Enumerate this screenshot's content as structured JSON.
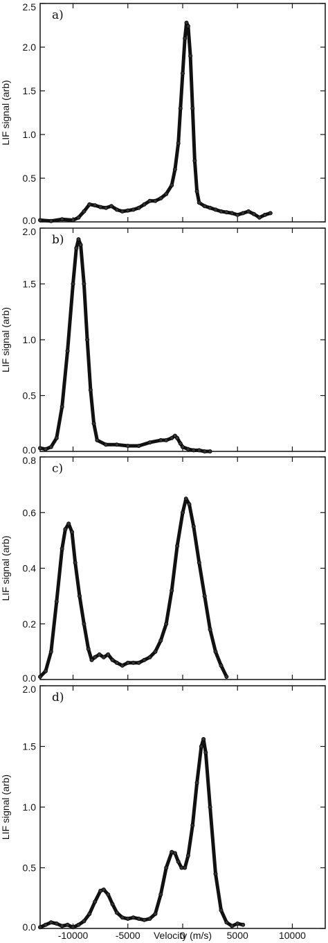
{
  "figure": {
    "x_axis_label": "Velocity (m/s)"
  },
  "chart_data": [
    {
      "type": "scatter",
      "panel_label": "a)",
      "ylabel": "LIF signal (arb)",
      "xlabel": "",
      "xlim": [
        -13000,
        13000
      ],
      "ylim": [
        0,
        2.5
      ],
      "x_ticks": [
        -10000,
        -5000,
        0,
        5000,
        10000
      ],
      "y_ticks": [
        0.0,
        0.5,
        1.0,
        1.5,
        2.0,
        2.5
      ],
      "y_tick_labels": [
        "0.0",
        "0.5",
        "1.0",
        "1.5",
        "2.0",
        "2.5"
      ],
      "points": [
        [
          -13000,
          0.02
        ],
        [
          -12000,
          0.01
        ],
        [
          -11000,
          0.03
        ],
        [
          -10000,
          0.02
        ],
        [
          -9500,
          0.05
        ],
        [
          -9000,
          0.12
        ],
        [
          -8500,
          0.2
        ],
        [
          -8000,
          0.19
        ],
        [
          -7500,
          0.17
        ],
        [
          -7000,
          0.16
        ],
        [
          -6500,
          0.18
        ],
        [
          -6000,
          0.14
        ],
        [
          -5500,
          0.12
        ],
        [
          -5000,
          0.13
        ],
        [
          -4500,
          0.14
        ],
        [
          -4000,
          0.16
        ],
        [
          -3500,
          0.2
        ],
        [
          -3000,
          0.24
        ],
        [
          -2500,
          0.24
        ],
        [
          -2000,
          0.27
        ],
        [
          -1500,
          0.32
        ],
        [
          -1000,
          0.42
        ],
        [
          -700,
          0.6
        ],
        [
          -400,
          0.9
        ],
        [
          -200,
          1.3
        ],
        [
          0,
          1.7
        ],
        [
          200,
          2.1
        ],
        [
          350,
          2.28
        ],
        [
          500,
          2.24
        ],
        [
          700,
          1.9
        ],
        [
          900,
          1.3
        ],
        [
          1100,
          0.7
        ],
        [
          1300,
          0.35
        ],
        [
          1500,
          0.22
        ],
        [
          2000,
          0.18
        ],
        [
          2500,
          0.16
        ],
        [
          3000,
          0.14
        ],
        [
          3500,
          0.12
        ],
        [
          4000,
          0.11
        ],
        [
          4500,
          0.1
        ],
        [
          5000,
          0.08
        ],
        [
          5500,
          0.1
        ],
        [
          6000,
          0.12
        ],
        [
          6500,
          0.09
        ],
        [
          7000,
          0.05
        ],
        [
          7500,
          0.08
        ],
        [
          8000,
          0.1
        ]
      ]
    },
    {
      "type": "scatter",
      "panel_label": "b)",
      "ylabel": "LIF signal (arb)",
      "xlabel": "",
      "xlim": [
        -13000,
        13000
      ],
      "ylim": [
        0,
        2.0
      ],
      "x_ticks": [
        -10000,
        -5000,
        0,
        5000,
        10000
      ],
      "y_ticks": [
        0.0,
        0.5,
        1.0,
        1.5,
        2.0
      ],
      "y_tick_labels": [
        "0.0",
        "0.5",
        "1.0",
        "1.5",
        "2.0"
      ],
      "points": [
        [
          -13000,
          0.03
        ],
        [
          -12500,
          0.02
        ],
        [
          -12000,
          0.04
        ],
        [
          -11500,
          0.12
        ],
        [
          -11000,
          0.4
        ],
        [
          -10500,
          0.9
        ],
        [
          -10000,
          1.5
        ],
        [
          -9700,
          1.82
        ],
        [
          -9500,
          1.9
        ],
        [
          -9300,
          1.85
        ],
        [
          -9000,
          1.5
        ],
        [
          -8700,
          1.0
        ],
        [
          -8400,
          0.55
        ],
        [
          -8100,
          0.25
        ],
        [
          -7800,
          0.1
        ],
        [
          -7000,
          0.06
        ],
        [
          -6000,
          0.06
        ],
        [
          -5000,
          0.05
        ],
        [
          -4000,
          0.05
        ],
        [
          -3000,
          0.08
        ],
        [
          -2000,
          0.1
        ],
        [
          -1500,
          0.1
        ],
        [
          -1000,
          0.12
        ],
        [
          -700,
          0.14
        ],
        [
          -500,
          0.12
        ],
        [
          -200,
          0.07
        ],
        [
          0,
          0.04
        ],
        [
          500,
          0.02
        ],
        [
          1000,
          0.01
        ],
        [
          1500,
          0.01
        ],
        [
          2000,
          0.0
        ],
        [
          2500,
          0.0
        ]
      ]
    },
    {
      "type": "scatter",
      "panel_label": "c)",
      "ylabel": "LIF signal (arb)",
      "xlabel": "",
      "xlim": [
        -13000,
        13000
      ],
      "ylim": [
        0,
        0.8
      ],
      "x_ticks": [
        -10000,
        -5000,
        0,
        5000,
        10000
      ],
      "y_ticks": [
        0.0,
        0.2,
        0.4,
        0.6,
        0.8
      ],
      "y_tick_labels": [
        "0.0",
        "0.2",
        "0.4",
        "0.6",
        "0.8"
      ],
      "points": [
        [
          -13000,
          0.01
        ],
        [
          -12500,
          0.03
        ],
        [
          -12000,
          0.1
        ],
        [
          -11500,
          0.28
        ],
        [
          -11000,
          0.47
        ],
        [
          -10700,
          0.54
        ],
        [
          -10400,
          0.56
        ],
        [
          -10100,
          0.53
        ],
        [
          -9800,
          0.42
        ],
        [
          -9400,
          0.3
        ],
        [
          -9000,
          0.2
        ],
        [
          -8600,
          0.11
        ],
        [
          -8300,
          0.07
        ],
        [
          -8000,
          0.08
        ],
        [
          -7600,
          0.09
        ],
        [
          -7200,
          0.08
        ],
        [
          -6800,
          0.09
        ],
        [
          -6400,
          0.07
        ],
        [
          -6000,
          0.06
        ],
        [
          -5500,
          0.05
        ],
        [
          -5000,
          0.06
        ],
        [
          -4500,
          0.06
        ],
        [
          -4000,
          0.06
        ],
        [
          -3500,
          0.07
        ],
        [
          -3000,
          0.08
        ],
        [
          -2500,
          0.1
        ],
        [
          -2000,
          0.14
        ],
        [
          -1500,
          0.2
        ],
        [
          -1000,
          0.32
        ],
        [
          -500,
          0.48
        ],
        [
          0,
          0.6
        ],
        [
          300,
          0.65
        ],
        [
          600,
          0.63
        ],
        [
          1000,
          0.55
        ],
        [
          1500,
          0.42
        ],
        [
          2000,
          0.3
        ],
        [
          2500,
          0.18
        ],
        [
          3000,
          0.1
        ],
        [
          3500,
          0.05
        ],
        [
          4000,
          0.01
        ]
      ]
    },
    {
      "type": "scatter",
      "panel_label": "d)",
      "ylabel": "LIF signal (arb)",
      "xlabel": "Velocity (m/s)",
      "xlim": [
        -13000,
        13000
      ],
      "ylim": [
        0,
        2.0
      ],
      "x_ticks": [
        -10000,
        -5000,
        0,
        5000,
        10000
      ],
      "x_tick_labels": [
        "-10000",
        "-5000",
        "0",
        "5000",
        "10000"
      ],
      "y_ticks": [
        0.0,
        0.5,
        1.0,
        1.5,
        2.0
      ],
      "y_tick_labels": [
        "0.0",
        "0.5",
        "1.0",
        "1.5",
        "2.0"
      ],
      "points": [
        [
          -13000,
          0.01
        ],
        [
          -12500,
          0.03
        ],
        [
          -12000,
          0.05
        ],
        [
          -11500,
          0.04
        ],
        [
          -11000,
          0.02
        ],
        [
          -10500,
          0.03
        ],
        [
          -10000,
          0.01
        ],
        [
          -9500,
          0.03
        ],
        [
          -9000,
          0.06
        ],
        [
          -8500,
          0.12
        ],
        [
          -8000,
          0.22
        ],
        [
          -7500,
          0.31
        ],
        [
          -7200,
          0.32
        ],
        [
          -6800,
          0.28
        ],
        [
          -6400,
          0.2
        ],
        [
          -6000,
          0.13
        ],
        [
          -5500,
          0.09
        ],
        [
          -5000,
          0.08
        ],
        [
          -4500,
          0.09
        ],
        [
          -4000,
          0.08
        ],
        [
          -3500,
          0.07
        ],
        [
          -3000,
          0.08
        ],
        [
          -2500,
          0.12
        ],
        [
          -2000,
          0.28
        ],
        [
          -1500,
          0.5
        ],
        [
          -1000,
          0.63
        ],
        [
          -700,
          0.62
        ],
        [
          -400,
          0.55
        ],
        [
          -100,
          0.5
        ],
        [
          200,
          0.5
        ],
        [
          500,
          0.6
        ],
        [
          900,
          0.85
        ],
        [
          1300,
          1.2
        ],
        [
          1700,
          1.5
        ],
        [
          1900,
          1.56
        ],
        [
          2100,
          1.45
        ],
        [
          2500,
          1.0
        ],
        [
          3000,
          0.45
        ],
        [
          3500,
          0.15
        ],
        [
          4000,
          0.05
        ],
        [
          4500,
          0.02
        ],
        [
          5000,
          0.04
        ],
        [
          5500,
          0.03
        ]
      ]
    }
  ]
}
